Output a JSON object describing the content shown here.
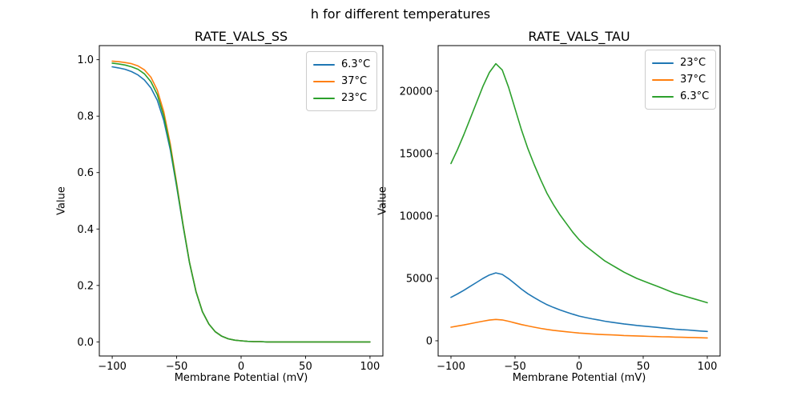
{
  "figure": {
    "suptitle": "h for different temperatures"
  },
  "chart_data": [
    {
      "type": "line",
      "title": "RATE_VALS_SS",
      "xlabel": "Membrane Potential (mV)",
      "ylabel": "Value",
      "grid": false,
      "legend_position": "upper right",
      "xlim": [
        -110,
        110
      ],
      "ylim": [
        -0.05,
        1.05
      ],
      "xticks": [
        -100,
        -50,
        0,
        50,
        100
      ],
      "xtick_labels": [
        "−100",
        "−50",
        "0",
        "50",
        "100"
      ],
      "yticks": [
        0.0,
        0.2,
        0.4,
        0.6,
        0.8,
        1.0
      ],
      "ytick_labels": [
        "0.0",
        "0.2",
        "0.4",
        "0.6",
        "0.8",
        "1.0"
      ],
      "x": [
        -100,
        -95,
        -90,
        -85,
        -80,
        -75,
        -70,
        -65,
        -60,
        -55,
        -50,
        -45,
        -40,
        -35,
        -30,
        -25,
        -20,
        -15,
        -10,
        -5,
        0,
        5,
        10,
        15,
        20,
        25,
        30,
        35,
        40,
        45,
        50,
        55,
        60,
        65,
        70,
        75,
        80,
        85,
        90,
        95,
        100
      ],
      "series": [
        {
          "name": "6.3°C",
          "color": "#1f77b4",
          "values": [
            0.975,
            0.971,
            0.966,
            0.958,
            0.946,
            0.928,
            0.9,
            0.856,
            0.784,
            0.682,
            0.551,
            0.41,
            0.28,
            0.178,
            0.107,
            0.063,
            0.036,
            0.02,
            0.011,
            0.006,
            0.004,
            0.002,
            0.001,
            0.001,
            0.0,
            0.0,
            0.0,
            0.0,
            0.0,
            0.0,
            0.0,
            0.0,
            0.0,
            0.0,
            0.0,
            0.0,
            0.0,
            0.0,
            0.0,
            0.0,
            0.0
          ]
        },
        {
          "name": "37°C",
          "color": "#ff7f0e",
          "values": [
            0.995,
            0.993,
            0.99,
            0.986,
            0.978,
            0.964,
            0.938,
            0.892,
            0.815,
            0.703,
            0.563,
            0.415,
            0.282,
            0.179,
            0.107,
            0.063,
            0.036,
            0.02,
            0.011,
            0.006,
            0.004,
            0.002,
            0.001,
            0.001,
            0.0,
            0.0,
            0.0,
            0.0,
            0.0,
            0.0,
            0.0,
            0.0,
            0.0,
            0.0,
            0.0,
            0.0,
            0.0,
            0.0,
            0.0,
            0.0,
            0.0
          ]
        },
        {
          "name": "23°C",
          "color": "#2ca02c",
          "values": [
            0.988,
            0.985,
            0.981,
            0.975,
            0.966,
            0.95,
            0.922,
            0.876,
            0.8,
            0.692,
            0.557,
            0.413,
            0.281,
            0.178,
            0.107,
            0.063,
            0.036,
            0.02,
            0.011,
            0.006,
            0.004,
            0.002,
            0.001,
            0.001,
            0.0,
            0.0,
            0.0,
            0.0,
            0.0,
            0.0,
            0.0,
            0.0,
            0.0,
            0.0,
            0.0,
            0.0,
            0.0,
            0.0,
            0.0,
            0.0,
            0.0
          ]
        }
      ]
    },
    {
      "type": "line",
      "title": "RATE_VALS_TAU",
      "xlabel": "Membrane Potential (mV)",
      "ylabel": "Value",
      "grid": false,
      "legend_position": "upper right",
      "xlim": [
        -110,
        110
      ],
      "ylim": [
        -1220,
        23650
      ],
      "xticks": [
        -100,
        -50,
        0,
        50,
        100
      ],
      "xtick_labels": [
        "−100",
        "−50",
        "0",
        "50",
        "100"
      ],
      "yticks": [
        0,
        5000,
        10000,
        15000,
        20000
      ],
      "ytick_labels": [
        "0",
        "5000",
        "10000",
        "15000",
        "20000"
      ],
      "x": [
        -100,
        -95,
        -90,
        -85,
        -80,
        -75,
        -70,
        -65,
        -60,
        -55,
        -50,
        -45,
        -40,
        -35,
        -30,
        -25,
        -20,
        -15,
        -10,
        -5,
        0,
        5,
        10,
        15,
        20,
        25,
        30,
        35,
        40,
        45,
        50,
        55,
        60,
        65,
        70,
        75,
        80,
        85,
        90,
        95,
        100
      ],
      "series": [
        {
          "name": "23°C",
          "color": "#1f77b4",
          "values": [
            3480,
            3750,
            4040,
            4360,
            4680,
            5000,
            5270,
            5440,
            5320,
            4970,
            4560,
            4140,
            3770,
            3450,
            3160,
            2890,
            2670,
            2470,
            2300,
            2130,
            1980,
            1860,
            1760,
            1670,
            1570,
            1490,
            1420,
            1350,
            1290,
            1230,
            1180,
            1130,
            1080,
            1030,
            980,
            930,
            890,
            860,
            820,
            780,
            750
          ]
        },
        {
          "name": "37°C",
          "color": "#ff7f0e",
          "values": [
            1090,
            1180,
            1270,
            1370,
            1470,
            1570,
            1660,
            1710,
            1670,
            1560,
            1430,
            1300,
            1190,
            1090,
            990,
            910,
            840,
            780,
            720,
            670,
            620,
            590,
            550,
            520,
            490,
            470,
            450,
            420,
            400,
            390,
            370,
            350,
            340,
            320,
            310,
            290,
            280,
            270,
            260,
            240,
            230
          ]
        },
        {
          "name": "6.3°C",
          "color": "#2ca02c",
          "values": [
            14200,
            15300,
            16500,
            17800,
            19100,
            20400,
            21500,
            22200,
            21700,
            20300,
            18600,
            16900,
            15400,
            14100,
            12900,
            11800,
            10900,
            10100,
            9400,
            8700,
            8100,
            7600,
            7200,
            6800,
            6400,
            6100,
            5800,
            5500,
            5250,
            5000,
            4800,
            4600,
            4400,
            4200,
            4000,
            3800,
            3650,
            3500,
            3350,
            3200,
            3050
          ]
        }
      ]
    }
  ]
}
